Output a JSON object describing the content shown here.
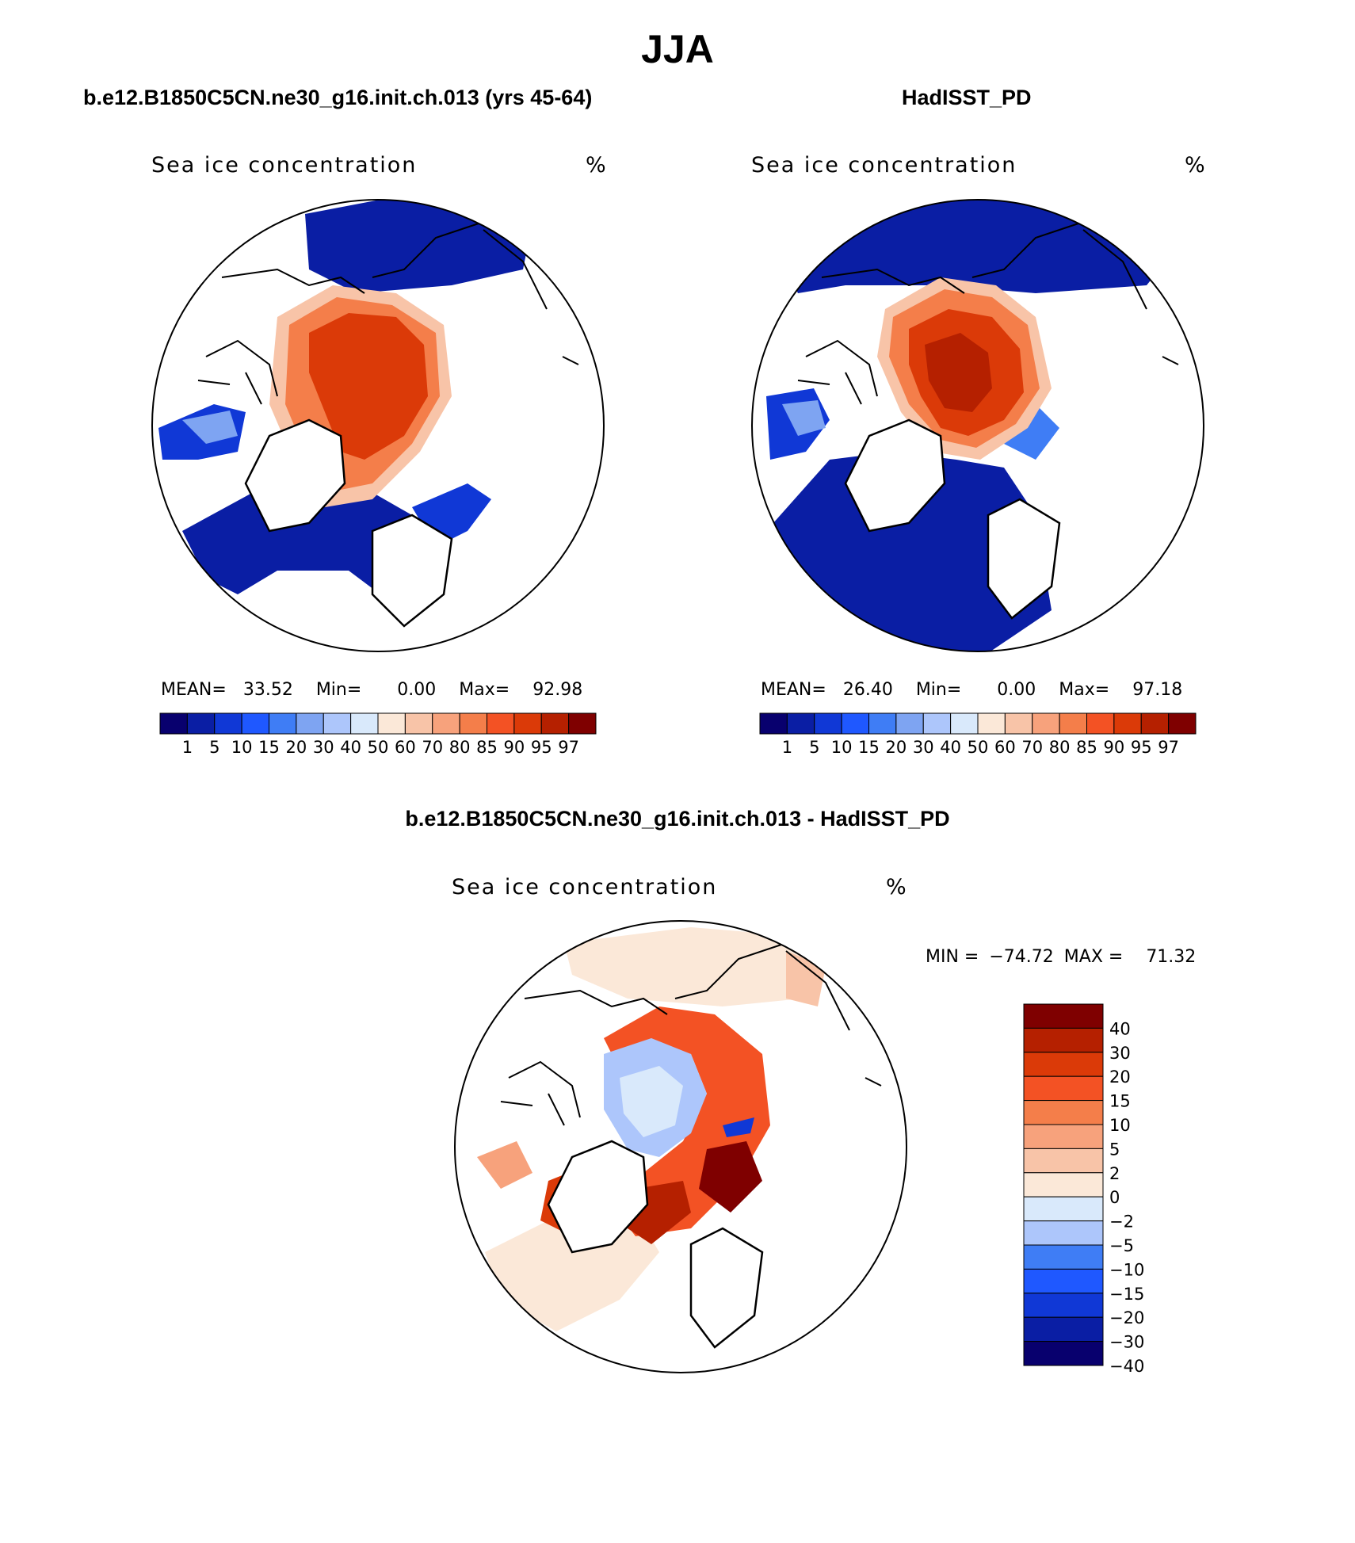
{
  "title": "JJA",
  "panels": [
    {
      "title": "b.e12.B1850C5CN.ne30_g16.init.ch.013 (yrs 45-64)",
      "variable": "Sea ice concentration",
      "units": "%",
      "stats": {
        "mean_label": "MEAN=",
        "mean": "33.52",
        "min_label": "Min=",
        "min": "0.00",
        "max_label": "Max=",
        "max": "92.98"
      }
    },
    {
      "title": "HadISST_PD",
      "variable": "Sea ice concentration",
      "units": "%",
      "stats": {
        "mean_label": "MEAN=",
        "mean": "26.40",
        "min_label": "Min=",
        "min": "0.00",
        "max_label": "Max=",
        "max": "97.18"
      }
    },
    {
      "title": "b.e12.B1850C5CN.ne30_g16.init.ch.013 - HadISST_PD",
      "variable": "Sea ice concentration",
      "units": "%",
      "stats": {
        "min_label": "MIN =",
        "min": "−74.72",
        "max_label": "MAX =",
        "max": "71.32"
      }
    }
  ],
  "colorbar_concentration": {
    "colors": [
      "#08006e",
      "#0a1ea4",
      "#1038d6",
      "#1f58ff",
      "#3f7df5",
      "#7ea4f2",
      "#adc6fb",
      "#d9e9fb",
      "#fbe8d8",
      "#f8c4a8",
      "#f7a27c",
      "#f47e4a",
      "#f35224",
      "#db3a08",
      "#b52000",
      "#7f0000"
    ],
    "labels": [
      "1",
      "5",
      "10",
      "15",
      "20",
      "30",
      "40",
      "50",
      "60",
      "70",
      "80",
      "85",
      "90",
      "95",
      "97"
    ]
  },
  "colorbar_difference": {
    "colors": [
      "#08006e",
      "#0a1ea4",
      "#1038d6",
      "#1f58ff",
      "#3f7df5",
      "#adc6fb",
      "#d9e9fb",
      "#fbe8d8",
      "#f8c4a8",
      "#f7a27c",
      "#f47e4a",
      "#f35224",
      "#db3a08",
      "#b52000",
      "#7f0000"
    ],
    "labels": [
      "40",
      "30",
      "20",
      "15",
      "10",
      "5",
      "2",
      "0",
      "−2",
      "−5",
      "−10",
      "−15",
      "−20",
      "−30",
      "−40"
    ]
  },
  "chart_data": [
    {
      "type": "heatmap",
      "projection": "north-polar-stereographic",
      "field": "Sea ice concentration",
      "units": "%",
      "mean": 33.52,
      "min": 0.0,
      "max": 92.98,
      "levels": [
        1,
        5,
        10,
        15,
        20,
        30,
        40,
        50,
        60,
        70,
        80,
        85,
        90,
        95,
        97
      ]
    },
    {
      "type": "heatmap",
      "projection": "north-polar-stereographic",
      "field": "Sea ice concentration",
      "units": "%",
      "mean": 26.4,
      "min": 0.0,
      "max": 97.18,
      "levels": [
        1,
        5,
        10,
        15,
        20,
        30,
        40,
        50,
        60,
        70,
        80,
        85,
        90,
        95,
        97
      ]
    },
    {
      "type": "heatmap",
      "projection": "north-polar-stereographic",
      "field": "Sea ice concentration difference",
      "units": "%",
      "min": -74.72,
      "max": 71.32,
      "levels": [
        -40,
        -30,
        -20,
        -15,
        -10,
        -5,
        -2,
        0,
        2,
        5,
        10,
        15,
        20,
        30,
        40
      ]
    }
  ]
}
